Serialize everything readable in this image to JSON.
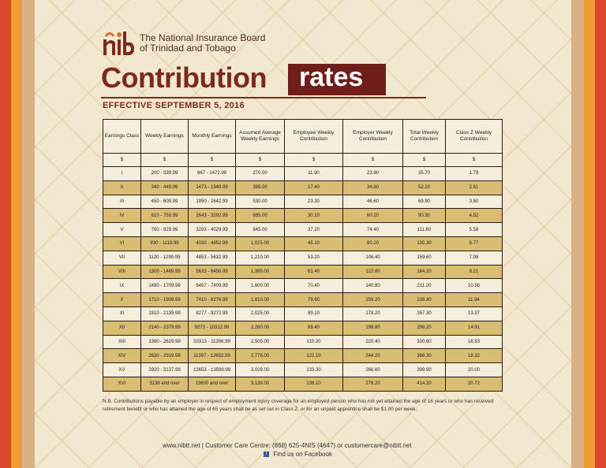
{
  "header": {
    "org_line1": "The National Insurance Board",
    "org_line2": "of Trinidad and Tobago",
    "title_main": "Contribution",
    "title_box": "rates",
    "effective": "EFFECTIVE SEPTEMBER 5, 2016"
  },
  "table": {
    "headers": [
      "Earnings Class",
      "Weekly Earnings",
      "Monthly Earnings",
      "Assumed Average Weekly Earnings",
      "Employee Weekly Contribution",
      "Employer Weekly Contribution",
      "Total Weekly Contribution",
      "Class Z Weekly Contribution"
    ],
    "units": [
      "$",
      "$",
      "$",
      "$",
      "$",
      "$",
      "$",
      "$"
    ],
    "rows": [
      [
        "I",
        "200 - 339.99",
        "867 - 1472.99",
        "270.00",
        "11.90",
        "23.80",
        "35.70",
        "1.79"
      ],
      [
        "II",
        "340 - 449.99",
        "1473 - 1949.99",
        "395.00",
        "17.40",
        "34.80",
        "52.20",
        "2.61"
      ],
      [
        "III",
        "450 - 609.99",
        "1950 - 2642.99",
        "530.00",
        "23.30",
        "46.60",
        "69.90",
        "3.50"
      ],
      [
        "IV",
        "610 - 759.99",
        "2643 - 3292.99",
        "685.00",
        "30.10",
        "60.20",
        "90.30",
        "4.52"
      ],
      [
        "V",
        "760 - 929.99",
        "3293 - 4029.99",
        "845.00",
        "37.20",
        "74.40",
        "111.60",
        "5.58"
      ],
      [
        "VI",
        "930 - 1119.99",
        "4030 - 4852.99",
        "1,025.00",
        "45.10",
        "90.20",
        "135.30",
        "6.77"
      ],
      [
        "VII",
        "1120 - 1299.99",
        "4853 - 5632.99",
        "1,210.00",
        "53.20",
        "106.40",
        "159.60",
        "7.98"
      ],
      [
        "VIII",
        "1300 - 1489.99",
        "5633 - 6456.99",
        "1,395.00",
        "61.40",
        "122.80",
        "184.20",
        "9.21"
      ],
      [
        "IX",
        "1490 - 1709.99",
        "6457 - 7409.99",
        "1,600.00",
        "70.40",
        "140.80",
        "211.20",
        "10.56"
      ],
      [
        "X",
        "1710 - 1909.99",
        "7410 - 8276.99",
        "1,810.00",
        "79.60",
        "159.20",
        "238.80",
        "11.94"
      ],
      [
        "XI",
        "1910 - 2139.99",
        "8277 - 9272.99",
        "2,025.00",
        "89.10",
        "178.20",
        "267.30",
        "13.37"
      ],
      [
        "XII",
        "2140 - 2379.99",
        "9273 - 10312.99",
        "2,260.00",
        "99.40",
        "198.80",
        "298.20",
        "14.91"
      ],
      [
        "XIII",
        "2380 - 2629.99",
        "10313 - 11396.99",
        "2,505.00",
        "110.20",
        "220.40",
        "330.60",
        "16.53"
      ],
      [
        "XIV",
        "2630 - 2919.99",
        "11397 - 12652.99",
        "2,775.00",
        "122.10",
        "244.20",
        "366.30",
        "18.32"
      ],
      [
        "XV",
        "2920 - 3137.99",
        "12653 - 13599.99",
        "3,029.00",
        "133.30",
        "266.60",
        "399.90",
        "20.00"
      ],
      [
        "XVI",
        "3138 and over",
        "13600 and over",
        "3,138.00",
        "138.10",
        "276.20",
        "414.30",
        "20.72"
      ]
    ]
  },
  "note": "N.B. Contributions payable by an employer in respect of employment injury coverage for an employed person who has not yet attained the age of 16 years or who has received retirement benefit or who has attained the age of 65 years shall be as set out in Class Z, or for an unpaid apprentice shall be $1.00 per week.",
  "footer": {
    "contact": "www.nibtt.net  |  Customer Care Centre: (868) 625-4NIS (4647) or customercare@nibtt.net",
    "facebook_icon_letter": "f",
    "facebook": "Find us on Facebook"
  },
  "colors": {
    "brand": "#7a2a1f",
    "box": "#6e1f1a",
    "row_alt": "#d8bd72",
    "stripe_red": "#d9482b",
    "stripe_orange": "#f09a32",
    "stripe_tan": "#d8b184"
  }
}
